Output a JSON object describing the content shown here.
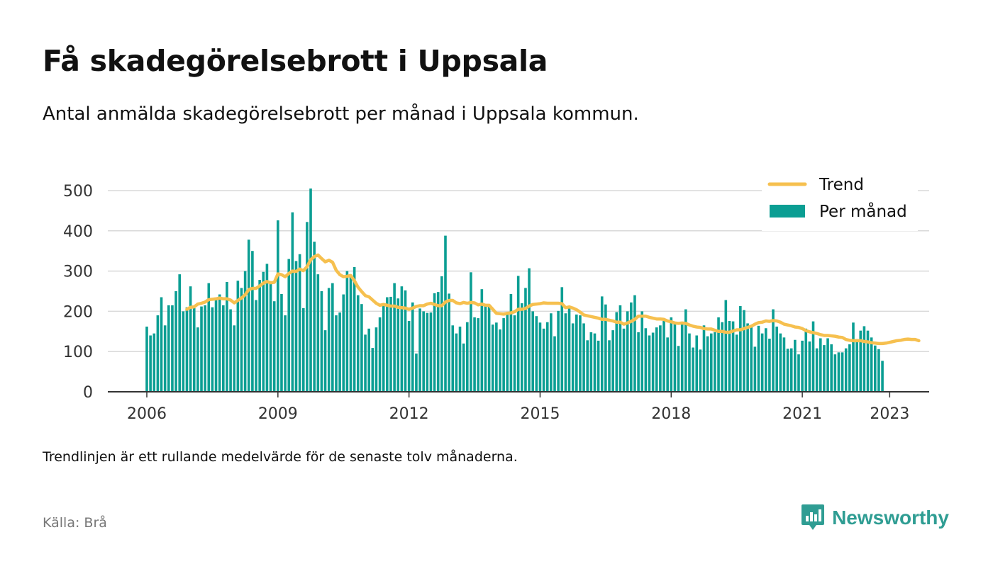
{
  "title": "Få skadegörelsebrott i Uppsala",
  "subtitle": "Antal anmälda skadegörelsebrott per månad i Uppsala kommun.",
  "note": "Trendlinjen är ett rullande medelvärde för de senaste tolv månaderna.",
  "source": "Källa: Brå",
  "brand": {
    "name": "Newsworthy",
    "icon": "newsworthy-logo-icon",
    "color": "#2f9d93"
  },
  "chart_data": {
    "type": "bar",
    "xlabel": "",
    "ylabel": "",
    "ylim": [
      0,
      530
    ],
    "yticks": [
      0,
      100,
      200,
      300,
      400,
      500
    ],
    "xticks": [
      "2006",
      "2009",
      "2012",
      "2015",
      "2018",
      "2021",
      "2023"
    ],
    "xtick_positions": [
      0,
      36,
      72,
      108,
      144,
      180,
      204
    ],
    "grid": true,
    "legend_position": "top-right",
    "start_month": "2006-01",
    "series": [
      {
        "name": "Per månad",
        "type": "bar",
        "color": "#0b9e93",
        "values": [
          162,
          140,
          145,
          190,
          235,
          165,
          215,
          215,
          250,
          292,
          200,
          210,
          262,
          208,
          160,
          212,
          215,
          270,
          210,
          230,
          242,
          215,
          273,
          205,
          165,
          276,
          258,
          300,
          378,
          350,
          228,
          278,
          298,
          318,
          272,
          225,
          426,
          243,
          190,
          330,
          446,
          325,
          342,
          208,
          422,
          505,
          373,
          292,
          250,
          153,
          258,
          270,
          190,
          197,
          242,
          300,
          288,
          310,
          240,
          218,
          142,
          157,
          109,
          160,
          185,
          218,
          235,
          236,
          270,
          232,
          262,
          252,
          176,
          222,
          95,
          207,
          200,
          196,
          197,
          245,
          248,
          287,
          388,
          244,
          165,
          145,
          162,
          120,
          173,
          297,
          185,
          183,
          255,
          218,
          215,
          167,
          172,
          155,
          183,
          197,
          243,
          190,
          288,
          220,
          258,
          307,
          200,
          188,
          172,
          157,
          173,
          195,
          138,
          201,
          260,
          195,
          210,
          170,
          192,
          190,
          170,
          128,
          148,
          145,
          127,
          237,
          217,
          128,
          153,
          198,
          215,
          157,
          200,
          222,
          240,
          148,
          200,
          158,
          140,
          147,
          160,
          165,
          176,
          135,
          185,
          170,
          114,
          170,
          205,
          145,
          110,
          140,
          105,
          165,
          138,
          145,
          148,
          185,
          173,
          228,
          176,
          175,
          142,
          213,
          203,
          170,
          165,
          112,
          164,
          145,
          158,
          132,
          205,
          162,
          145,
          135,
          107,
          108,
          129,
          93,
          127,
          157,
          125,
          175,
          108,
          133,
          116,
          133,
          118,
          93,
          98,
          98,
          108,
          118,
          172,
          131,
          152,
          163,
          152,
          135,
          115,
          106,
          77
        ]
      },
      {
        "name": "Trend",
        "type": "line",
        "color": "#f6c04f",
        "values": [
          null,
          null,
          null,
          null,
          null,
          null,
          null,
          null,
          null,
          null,
          null,
          205,
          210,
          211,
          218,
          220,
          223,
          229,
          230,
          231,
          233,
          231,
          231,
          228,
          221,
          227,
          233,
          241,
          254,
          257,
          257,
          263,
          270,
          274,
          271,
          272,
          293,
          291,
          286,
          294,
          300,
          299,
          305,
          301,
          311,
          328,
          336,
          340,
          331,
          323,
          327,
          322,
          302,
          291,
          286,
          287,
          289,
          276,
          260,
          249,
          239,
          236,
          228,
          220,
          215,
          217,
          215,
          213,
          213,
          210,
          209,
          208,
          205,
          208,
          212,
          214,
          214,
          218,
          220,
          217,
          214,
          214,
          223,
          227,
          227,
          221,
          219,
          222,
          220,
          222,
          221,
          216,
          218,
          215,
          215,
          205,
          195,
          194,
          193,
          195,
          196,
          199,
          205,
          205,
          207,
          213,
          217,
          218,
          219,
          221,
          220,
          220,
          220,
          220,
          219,
          209,
          211,
          208,
          204,
          198,
          191,
          189,
          187,
          185,
          183,
          180,
          180,
          178,
          176,
          173,
          173,
          168,
          171,
          175,
          180,
          188,
          188,
          188,
          185,
          183,
          181,
          181,
          180,
          176,
          174,
          171,
          170,
          171,
          170,
          166,
          163,
          161,
          160,
          157,
          156,
          156,
          153,
          150,
          150,
          148,
          148,
          151,
          154,
          154,
          157,
          160,
          163,
          168,
          172,
          173,
          176,
          175,
          177,
          176,
          173,
          168,
          166,
          164,
          161,
          160,
          157,
          152,
          149,
          147,
          145,
          142,
          140,
          140,
          139,
          138,
          136,
          135,
          130,
          128,
          127,
          127,
          127,
          125,
          124,
          122,
          121,
          120,
          120,
          121,
          123,
          125,
          127,
          128,
          130,
          131,
          130,
          130,
          127
        ]
      }
    ]
  }
}
